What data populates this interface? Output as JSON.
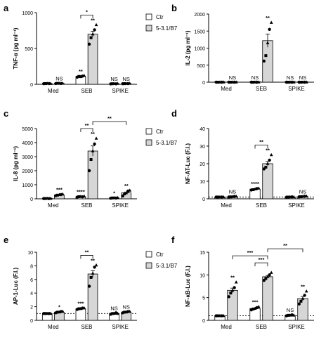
{
  "legend": {
    "ctr": "Ctr",
    "treated": "5-3.1/B7"
  },
  "chart_data": [
    {
      "panel": "a",
      "type": "bar",
      "ylabel": "TNF-α (pg ml⁻¹)",
      "ylim": [
        0,
        1000
      ],
      "yticks": [
        0,
        500,
        1000
      ],
      "categories": [
        "Med",
        "SEB",
        "SPIKE"
      ],
      "series": [
        {
          "name": "Ctr",
          "values": [
            10,
            110,
            8
          ],
          "points": [
            [
              8,
              10,
              12,
              10,
              9
            ],
            [
              100,
              110,
              105,
              115,
              120
            ],
            [
              6,
              8,
              9,
              7,
              10
            ]
          ]
        },
        {
          "name": "5-3.1/B7",
          "values": [
            12,
            700,
            9
          ],
          "points": [
            [
              10,
              14,
              12,
              11,
              13
            ],
            [
              560,
              650,
              700,
              760,
              830
            ],
            [
              8,
              9,
              10,
              9,
              11
            ]
          ]
        }
      ],
      "point_labels": [
        "",
        "NS",
        "**",
        "**",
        "NS",
        "NS"
      ],
      "brackets": [
        {
          "from": "SEB-Ctr",
          "to": "SEB-5-3.1/B7",
          "label": "*"
        }
      ]
    },
    {
      "panel": "b",
      "type": "bar",
      "ylabel": "IL-2 (pg ml⁻¹)",
      "ylim": [
        0,
        2000
      ],
      "yticks": [
        0,
        500,
        1000,
        1500,
        2000
      ],
      "categories": [
        "Med",
        "SEB",
        "SPIKE"
      ],
      "series": [
        {
          "name": "Ctr",
          "values": [
            0,
            0,
            0
          ],
          "points": [
            [
              0,
              0,
              0,
              0,
              0
            ],
            [
              0,
              0,
              0,
              0,
              0
            ],
            [
              0,
              0,
              0,
              0,
              0
            ]
          ]
        },
        {
          "name": "5-3.1/B7",
          "values": [
            0,
            1220,
            0
          ],
          "points": [
            [
              0,
              0,
              0,
              0,
              0
            ],
            [
              620,
              780,
              1150,
              1550,
              1750
            ],
            [
              0,
              0,
              0,
              0,
              0
            ]
          ]
        }
      ],
      "point_labels": [
        "",
        "NS",
        "NS",
        "**",
        "NS",
        "NS"
      ],
      "brackets": []
    },
    {
      "panel": "c",
      "type": "bar",
      "ylabel": "IL-8 (pg ml⁻¹)",
      "ylim": [
        0,
        5000
      ],
      "yticks": [
        0,
        1000,
        2000,
        3000,
        4000,
        5000
      ],
      "categories": [
        "Med",
        "SEB",
        "SPIKE"
      ],
      "series": [
        {
          "name": "Ctr",
          "values": [
            20,
            150,
            60
          ],
          "points": [
            [
              15,
              20,
              25,
              18,
              22
            ],
            [
              120,
              150,
              160,
              140,
              180
            ],
            [
              40,
              60,
              70,
              50,
              80
            ]
          ]
        },
        {
          "name": "5-3.1/B7",
          "values": [
            280,
            3400,
            420
          ],
          "points": [
            [
              220,
              260,
              290,
              300,
              330
            ],
            [
              2000,
              2800,
              3400,
              3900,
              4300
            ],
            [
              200,
              350,
              420,
              550,
              600
            ]
          ]
        }
      ],
      "point_labels": [
        "",
        "***",
        "****",
        "**",
        "*",
        "**"
      ],
      "brackets": [
        {
          "from": "SEB-Ctr",
          "to": "SEB-5-3.1/B7",
          "label": "**"
        },
        {
          "from": "SEB-5-3.1/B7",
          "to": "SPIKE-5-3.1/B7",
          "label": "**"
        }
      ]
    },
    {
      "panel": "d",
      "type": "bar",
      "ylabel": "NF-AT-Luc (F.I.)",
      "ylim": [
        0,
        40
      ],
      "yticks": [
        0,
        10,
        20,
        30,
        40
      ],
      "categories": [
        "Med",
        "SEB",
        "SPIKE"
      ],
      "baseline": 1,
      "series": [
        {
          "name": "Ctr",
          "values": [
            1.0,
            5.5,
            1.0
          ],
          "points": [
            [
              1,
              1,
              1,
              1,
              1
            ],
            [
              5,
              5.2,
              5.5,
              5.8,
              6
            ],
            [
              0.9,
              1,
              1,
              1.1,
              1
            ]
          ]
        },
        {
          "name": "5-3.1/B7",
          "values": [
            1.2,
            20,
            1.3
          ],
          "points": [
            [
              1,
              1.1,
              1.2,
              1.3,
              1.4
            ],
            [
              17,
              18,
              20,
              22,
              25
            ],
            [
              1.1,
              1.2,
              1.3,
              1.4,
              1.5
            ]
          ]
        }
      ],
      "point_labels": [
        "",
        "NS",
        "****",
        "**",
        "",
        "NS"
      ],
      "brackets": [
        {
          "from": "SEB-Ctr",
          "to": "SEB-5-3.1/B7",
          "label": "**"
        }
      ]
    },
    {
      "panel": "e",
      "type": "bar",
      "ylabel": "AP-1-Luc (F.I.)",
      "ylim": [
        0,
        10
      ],
      "yticks": [
        0,
        2,
        4,
        6,
        8,
        10
      ],
      "categories": [
        "Med",
        "SEB",
        "SPIKE"
      ],
      "baseline": 1,
      "series": [
        {
          "name": "Ctr",
          "values": [
            1.0,
            1.7,
            1.0
          ],
          "points": [
            [
              1,
              1,
              1,
              1,
              1
            ],
            [
              1.6,
              1.7,
              1.7,
              1.8,
              1.8
            ],
            [
              0.9,
              1,
              1,
              1.1,
              1
            ]
          ]
        },
        {
          "name": "5-3.1/B7",
          "values": [
            1.2,
            6.8,
            1.2
          ],
          "points": [
            [
              1.1,
              1.2,
              1.2,
              1.3,
              1.3
            ],
            [
              5,
              6.3,
              6.9,
              7.8,
              8.1
            ],
            [
              1.1,
              1.2,
              1.2,
              1.3,
              1.3
            ]
          ]
        }
      ],
      "point_labels": [
        "",
        "*",
        "***",
        "**",
        "NS",
        "NS"
      ],
      "brackets": [
        {
          "from": "SEB-Ctr",
          "to": "SEB-5-3.1/B7",
          "label": "**"
        }
      ]
    },
    {
      "panel": "f",
      "type": "bar",
      "ylabel": "NF-κB-Luc (F.I.)",
      "ylim": [
        0,
        15
      ],
      "yticks": [
        0,
        5,
        10,
        15
      ],
      "categories": [
        "Med",
        "SEB",
        "SPIKE"
      ],
      "baseline": 1,
      "series": [
        {
          "name": "Ctr",
          "values": [
            1.0,
            2.6,
            1.1
          ],
          "points": [
            [
              1,
              1,
              1,
              1,
              1
            ],
            [
              2.3,
              2.5,
              2.6,
              2.8,
              3.0
            ],
            [
              1,
              1.1,
              1.1,
              1.2,
              1.1
            ]
          ]
        },
        {
          "name": "5-3.1/B7",
          "values": [
            6.6,
            9.6,
            4.8
          ],
          "points": [
            [
              5.2,
              6,
              6.6,
              7.2,
              8.4
            ],
            [
              8.8,
              9.2,
              9.6,
              10,
              10.5
            ],
            [
              3.6,
              4.2,
              4.8,
              5.5,
              6.4
            ]
          ]
        }
      ],
      "point_labels": [
        "",
        "**",
        "***",
        "",
        "NS",
        "**"
      ],
      "brackets": [
        {
          "from": "SEB-Ctr",
          "to": "SEB-5-3.1/B7",
          "label": "***"
        },
        {
          "from": "Med-5-3.1/B7",
          "to": "SEB-5-3.1/B7",
          "label": "***"
        },
        {
          "from": "SEB-5-3.1/B7",
          "to": "SPIKE-5-3.1/B7",
          "label": "**"
        }
      ]
    }
  ]
}
